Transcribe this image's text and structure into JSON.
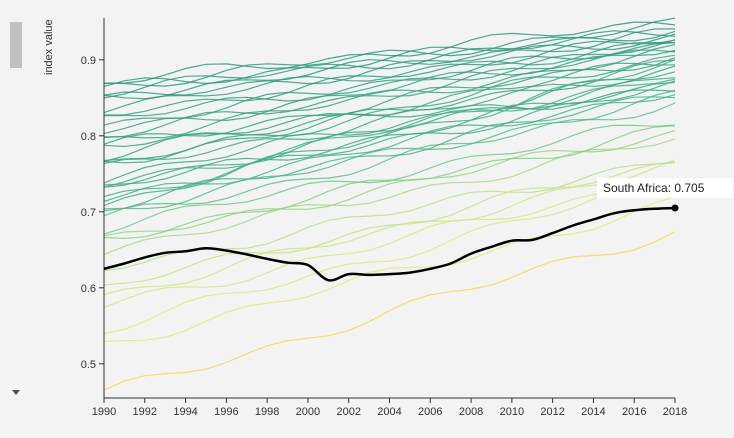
{
  "chart_data": {
    "type": "line",
    "ylabel": "index value",
    "xlim": [
      1990,
      2018
    ],
    "ylim": [
      0.455,
      0.955
    ],
    "x_ticks": [
      1990,
      1992,
      1994,
      1996,
      1998,
      2000,
      2002,
      2004,
      2006,
      2008,
      2010,
      2012,
      2014,
      2016,
      2018
    ],
    "y_ticks": [
      0.5,
      0.6,
      0.7,
      0.8,
      0.9
    ],
    "y_tick_labels": [
      "0.5",
      "0.6",
      "0.7",
      "0.8",
      "0.9"
    ],
    "x_tick_labels": [
      "1990",
      "1992",
      "1994",
      "1996",
      "1998",
      "2000",
      "2002",
      "2004",
      "2006",
      "2008",
      "2010",
      "2012",
      "2014",
      "2016",
      "2018"
    ],
    "grid": false,
    "highlight": {
      "color": "#000000",
      "points": [
        [
          1990,
          0.625
        ],
        [
          1991,
          0.632
        ],
        [
          1992,
          0.64
        ],
        [
          1993,
          0.646
        ],
        [
          1994,
          0.648
        ],
        [
          1995,
          0.652
        ],
        [
          1996,
          0.649
        ],
        [
          1997,
          0.644
        ],
        [
          1998,
          0.638
        ],
        [
          1999,
          0.633
        ],
        [
          2000,
          0.63
        ],
        [
          2001,
          0.61
        ],
        [
          2002,
          0.618
        ],
        [
          2003,
          0.617
        ],
        [
          2004,
          0.618
        ],
        [
          2005,
          0.62
        ],
        [
          2006,
          0.625
        ],
        [
          2007,
          0.632
        ],
        [
          2008,
          0.645
        ],
        [
          2009,
          0.654
        ],
        [
          2010,
          0.662
        ],
        [
          2011,
          0.663
        ],
        [
          2012,
          0.672
        ],
        [
          2013,
          0.682
        ],
        [
          2014,
          0.69
        ],
        [
          2015,
          0.698
        ],
        [
          2016,
          0.702
        ],
        [
          2017,
          0.704
        ],
        [
          2018,
          0.705
        ]
      ]
    },
    "tooltip": {
      "text": "South Africa: 0.705",
      "x": 2018,
      "y": 0.705
    },
    "background_series": [
      {
        "start": 0.46,
        "end": 0.675,
        "color": "#f5d94a"
      },
      {
        "start": 0.525,
        "end": 0.71,
        "color": "#e6e770"
      },
      {
        "start": 0.545,
        "end": 0.74,
        "color": "#dde978"
      },
      {
        "start": 0.575,
        "end": 0.745,
        "color": "#d6e97a"
      },
      {
        "start": 0.59,
        "end": 0.76,
        "color": "#cde77c"
      },
      {
        "start": 0.6,
        "end": 0.765,
        "color": "#c5e47e"
      },
      {
        "start": 0.625,
        "end": 0.77,
        "color": "#b9e080"
      },
      {
        "start": 0.65,
        "end": 0.795,
        "color": "#a8db80"
      },
      {
        "start": 0.66,
        "end": 0.805,
        "color": "#96d582"
      },
      {
        "start": 0.665,
        "end": 0.81,
        "color": "#86d086"
      },
      {
        "start": 0.68,
        "end": 0.82,
        "color": "#70c88a"
      },
      {
        "start": 0.69,
        "end": 0.845,
        "color": "#5cc08c"
      },
      {
        "start": 0.7,
        "end": 0.85,
        "color": "#4fbb8c"
      },
      {
        "start": 0.705,
        "end": 0.855,
        "color": "#45b68b"
      },
      {
        "start": 0.715,
        "end": 0.86,
        "color": "#3fb389"
      },
      {
        "start": 0.72,
        "end": 0.865,
        "color": "#3db088"
      },
      {
        "start": 0.73,
        "end": 0.87,
        "color": "#3aad87"
      },
      {
        "start": 0.735,
        "end": 0.88,
        "color": "#38ab86"
      },
      {
        "start": 0.745,
        "end": 0.885,
        "color": "#37aa85"
      },
      {
        "start": 0.755,
        "end": 0.89,
        "color": "#36a985"
      },
      {
        "start": 0.765,
        "end": 0.895,
        "color": "#35a884"
      },
      {
        "start": 0.775,
        "end": 0.9,
        "color": "#34a784"
      },
      {
        "start": 0.785,
        "end": 0.905,
        "color": "#33a683"
      },
      {
        "start": 0.795,
        "end": 0.91,
        "color": "#32a583"
      },
      {
        "start": 0.8,
        "end": 0.915,
        "color": "#31a482"
      },
      {
        "start": 0.805,
        "end": 0.918,
        "color": "#30a382"
      },
      {
        "start": 0.815,
        "end": 0.92,
        "color": "#2fa281"
      },
      {
        "start": 0.82,
        "end": 0.922,
        "color": "#2ea181"
      },
      {
        "start": 0.83,
        "end": 0.925,
        "color": "#2da080"
      },
      {
        "start": 0.838,
        "end": 0.928,
        "color": "#2c9f80"
      },
      {
        "start": 0.845,
        "end": 0.932,
        "color": "#2b9e7f"
      },
      {
        "start": 0.852,
        "end": 0.935,
        "color": "#2a9d7f"
      },
      {
        "start": 0.858,
        "end": 0.938,
        "color": "#2a9c7e"
      },
      {
        "start": 0.862,
        "end": 0.94,
        "color": "#299b7e"
      },
      {
        "start": 0.866,
        "end": 0.945,
        "color": "#289a7d"
      },
      {
        "start": 0.87,
        "end": 0.95,
        "color": "#27997d"
      },
      {
        "start": 0.735,
        "end": 0.88,
        "color": "#3ab088"
      },
      {
        "start": 0.71,
        "end": 0.895,
        "color": "#3cb088"
      },
      {
        "start": 0.76,
        "end": 0.905,
        "color": "#35a985"
      },
      {
        "start": 0.79,
        "end": 0.86,
        "color": "#33a683"
      }
    ]
  }
}
